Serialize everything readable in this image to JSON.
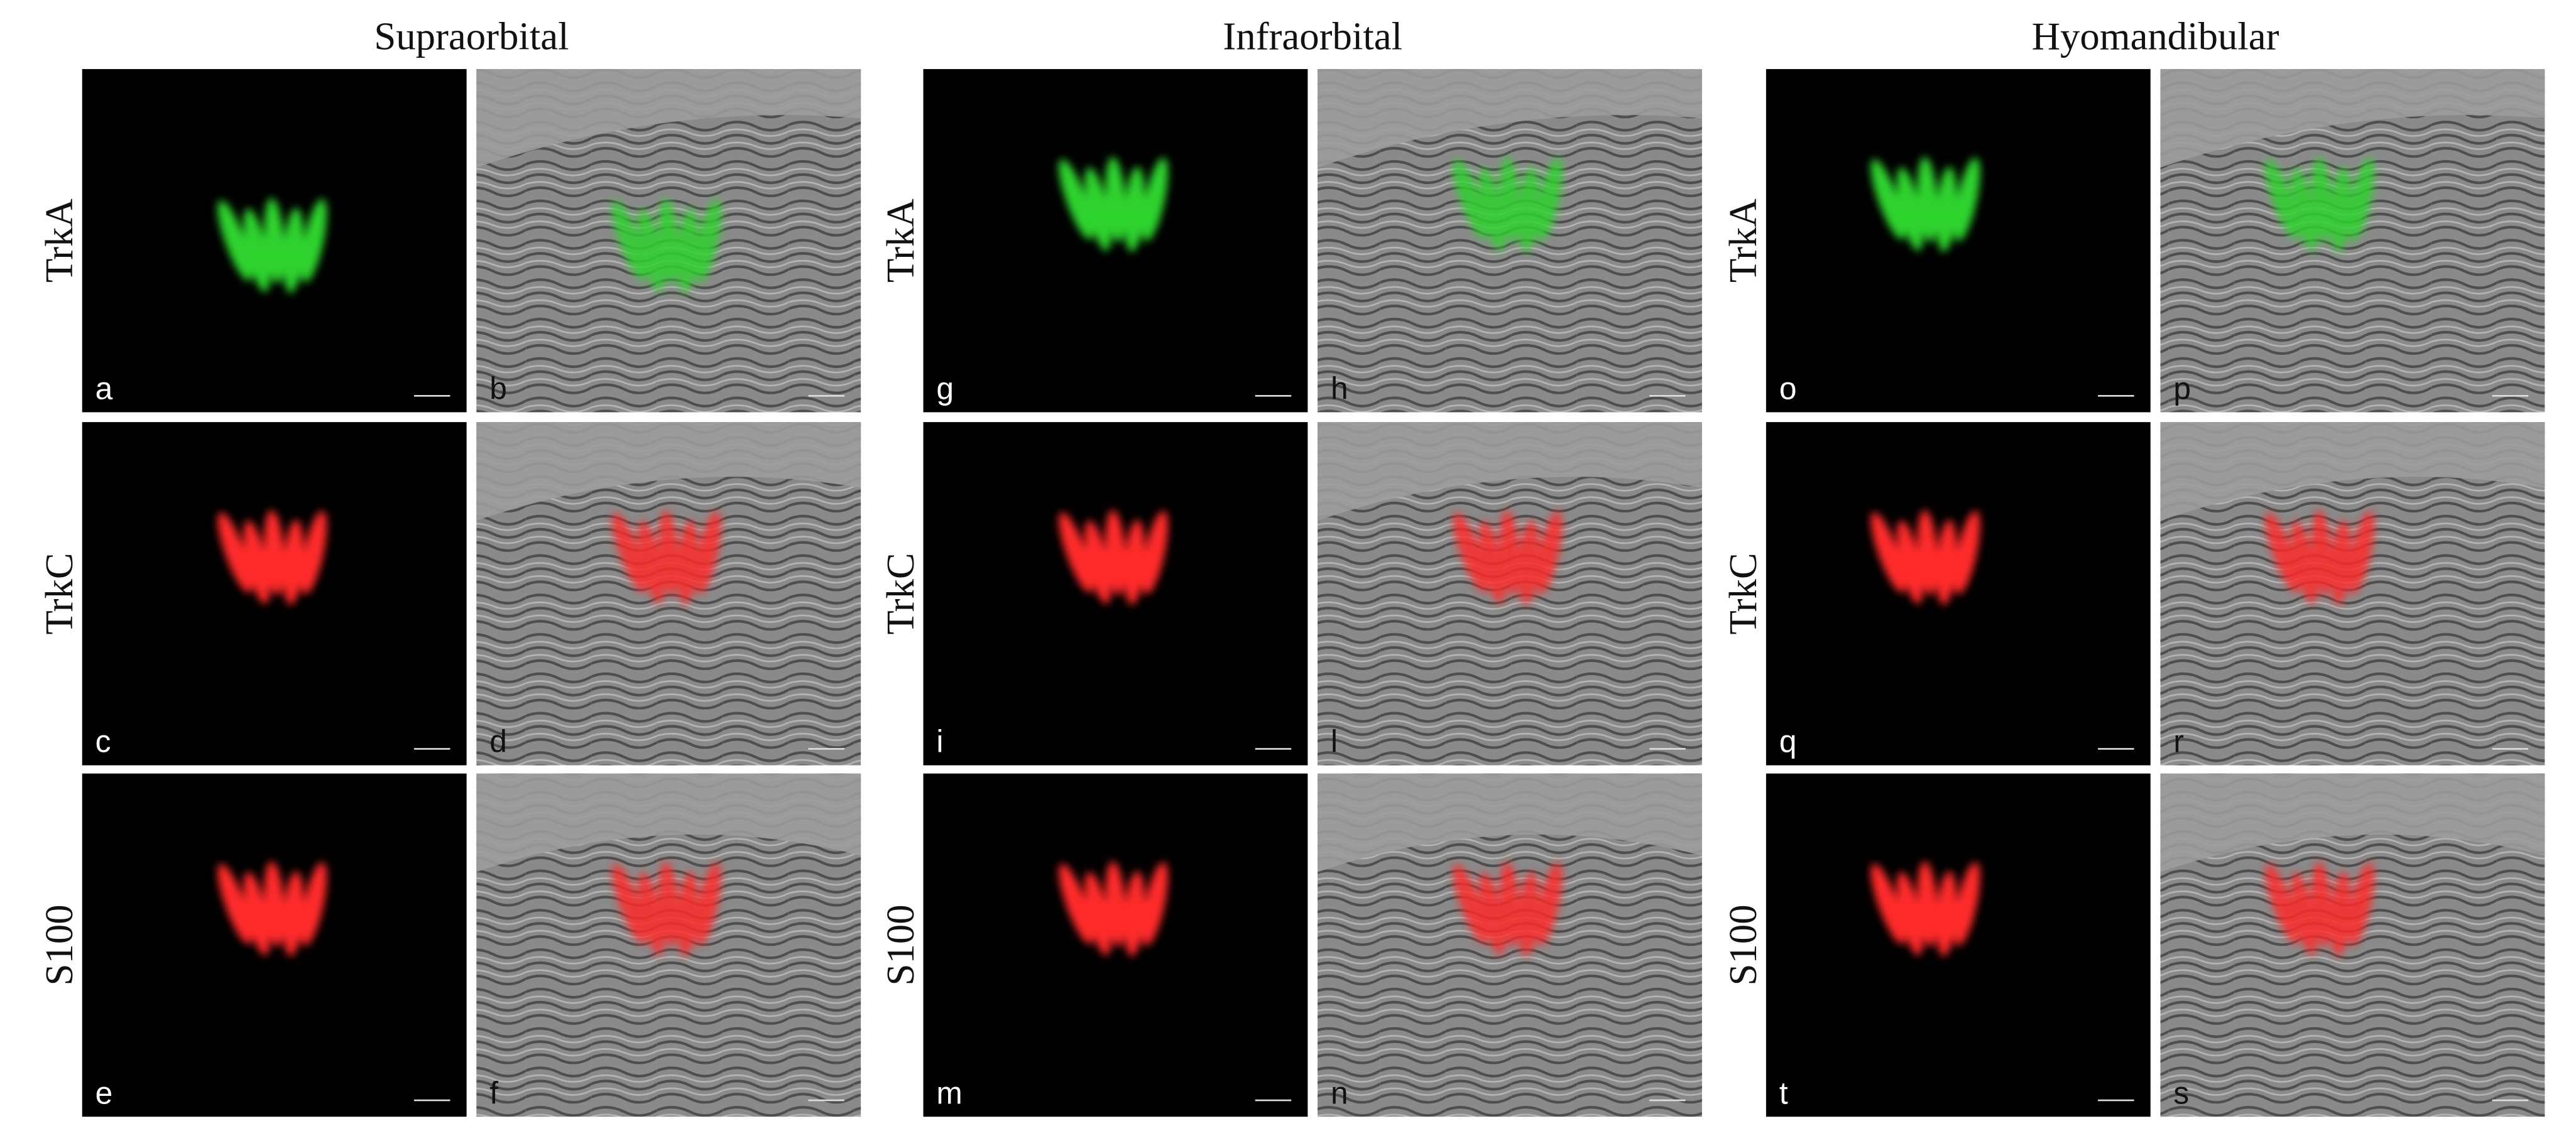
{
  "columns": [
    {
      "title": "Supraorbital",
      "rows": [
        {
          "label": "TrkA",
          "panels": [
            "a",
            "b"
          ]
        },
        {
          "label": "TrkC",
          "panels": [
            "c",
            "d"
          ]
        },
        {
          "label": "S100",
          "panels": [
            "e",
            "f"
          ]
        }
      ]
    },
    {
      "title": "Infraorbital",
      "rows": [
        {
          "label": "TrkA",
          "panels": [
            "g",
            "h"
          ]
        },
        {
          "label": "TrkC",
          "panels": [
            "i",
            "l"
          ]
        },
        {
          "label": "S100",
          "panels": [
            "m",
            "n"
          ]
        }
      ]
    },
    {
      "title": "Hyomandibular",
      "rows": [
        {
          "label": "TrkA",
          "panels": [
            "o",
            "p"
          ]
        },
        {
          "label": "TrkC",
          "panels": [
            "q",
            "r"
          ]
        },
        {
          "label": "S100",
          "panels": [
            "t",
            "s"
          ]
        }
      ]
    }
  ]
}
